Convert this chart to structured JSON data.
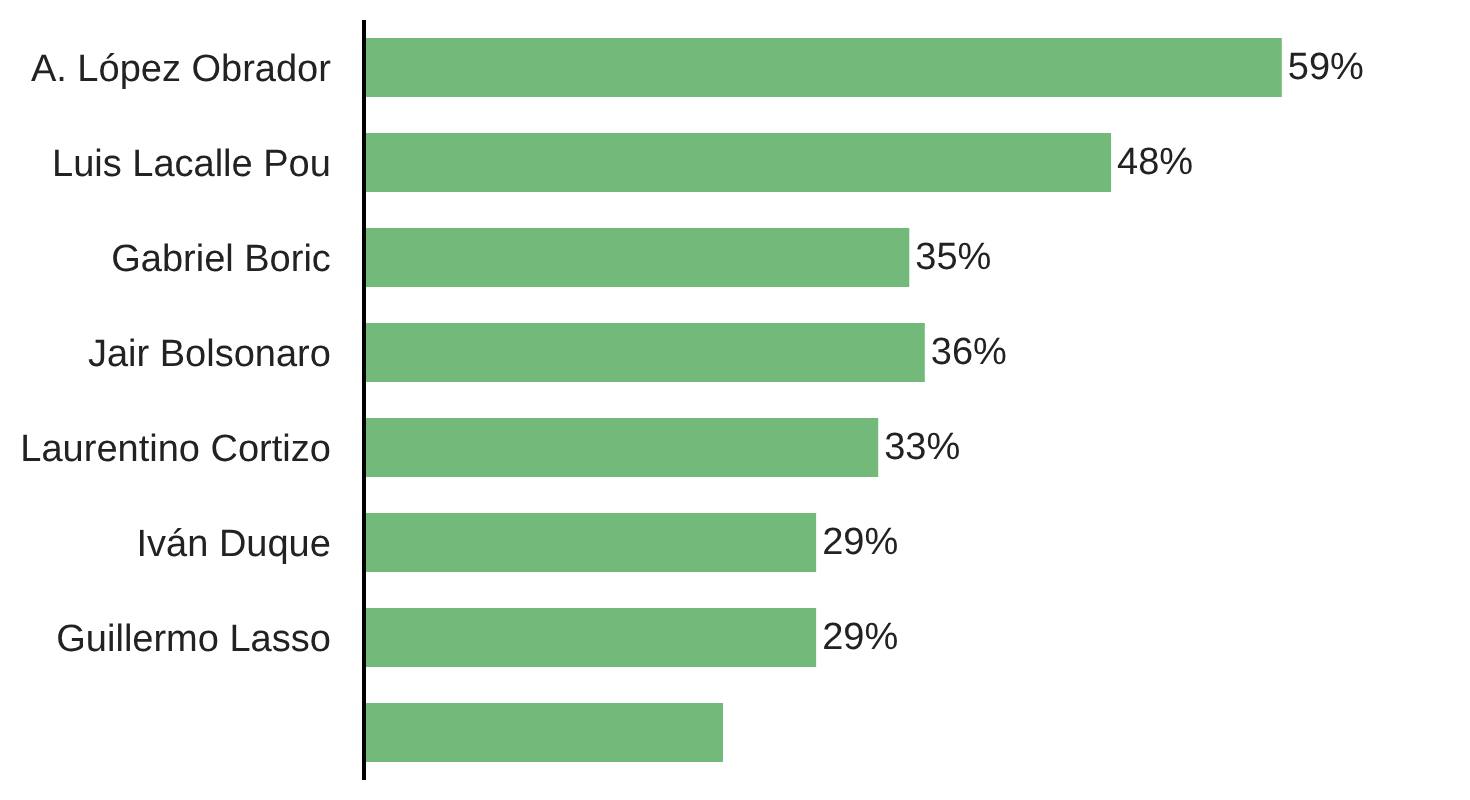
{
  "chart_data": {
    "type": "bar",
    "orientation": "horizontal",
    "categories": [
      "A. López Obrador",
      "Luis Lacalle Pou",
      "Gabriel Boric",
      "Jair Bolsonaro",
      "Laurentino Cortizo",
      "Iván Duque",
      "Guillermo Lasso",
      null
    ],
    "values": [
      59,
      48,
      35,
      36,
      33,
      29,
      29,
      23
    ],
    "value_labels": [
      "59%",
      "48%",
      "35%",
      "36%",
      "33%",
      "29%",
      "29%",
      null
    ],
    "color": "#72b97a",
    "tick_labels": "y"
  }
}
